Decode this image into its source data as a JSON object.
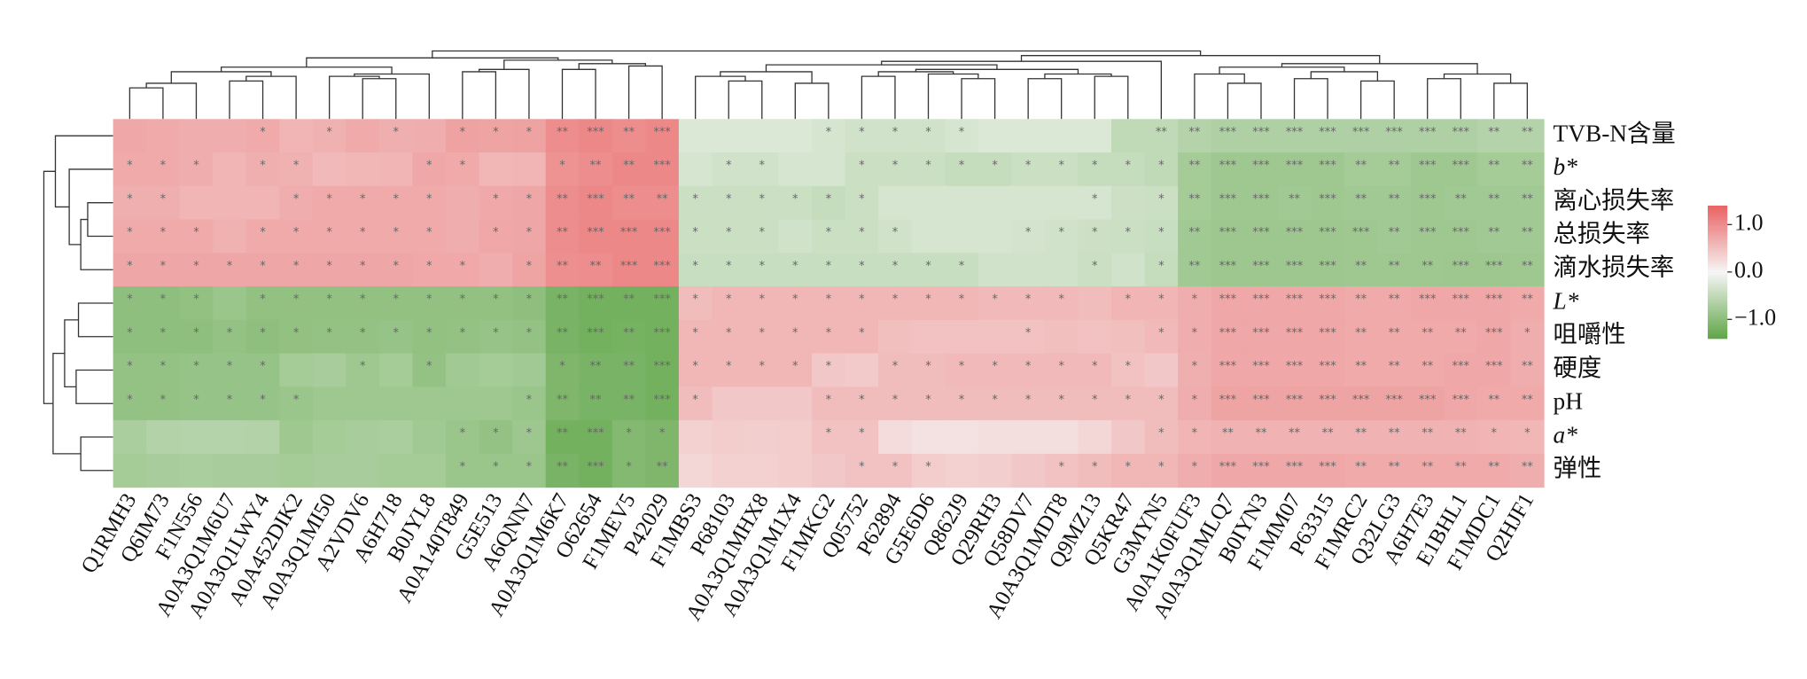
{
  "chart_data": {
    "type": "heatmap",
    "columns": [
      "Q1RMH3",
      "Q6IM73",
      "F1N556",
      "A0A3Q1M6U7",
      "A0A3Q1LWY4",
      "A0A452DIK2",
      "A0A3Q1MI50",
      "A2VDV6",
      "A6H718",
      "B0JYL8",
      "A0A140T849",
      "G5E513",
      "A6QNN7",
      "A0A3Q1M6K7",
      "O62654",
      "F1MEV5",
      "P42029",
      "F1MBS3",
      "P68103",
      "A0A3Q1MHX8",
      "A0A3Q1M1X4",
      "F1MKG2",
      "Q05752",
      "P62894",
      "G5E6D6",
      "Q862J9",
      "Q29RH3",
      "Q58DV7",
      "A0A3Q1MDT8",
      "Q9MZ13",
      "Q5KR47",
      "G3MYN5",
      "A0A1K0FUF3",
      "A0A3Q1MLQ7",
      "B0IYN3",
      "F1MM07",
      "P63315",
      "F1MRC2",
      "Q32LG3",
      "A6H7E3",
      "E1BHL1",
      "F1MDC1",
      "Q2HJF1"
    ],
    "rows": [
      "TVB-N含量",
      "b*",
      "离心损失率",
      "总损失率",
      "滴水损失率",
      "L*",
      "咀嚼性",
      "硬度",
      "pH",
      "a*",
      "弹性"
    ],
    "values": [
      [
        0.75,
        0.72,
        0.7,
        0.7,
        0.72,
        0.62,
        0.66,
        0.72,
        0.68,
        0.7,
        0.8,
        0.78,
        0.8,
        1.0,
        1.05,
        1.0,
        1.05,
        -0.25,
        -0.25,
        -0.25,
        -0.25,
        -0.3,
        -0.35,
        -0.35,
        -0.35,
        -0.3,
        -0.25,
        -0.25,
        -0.25,
        -0.25,
        -0.5,
        -0.5,
        -0.6,
        -0.65,
        -0.65,
        -0.65,
        -0.65,
        -0.65,
        -0.65,
        -0.65,
        -0.65,
        -0.6,
        -0.6
      ],
      [
        0.72,
        0.72,
        0.7,
        0.62,
        0.68,
        0.66,
        0.58,
        0.6,
        0.62,
        0.75,
        0.72,
        0.6,
        0.62,
        0.95,
        1.0,
        1.05,
        1.05,
        -0.3,
        -0.35,
        -0.35,
        -0.3,
        -0.3,
        -0.4,
        -0.4,
        -0.4,
        -0.45,
        -0.45,
        -0.4,
        -0.4,
        -0.45,
        -0.45,
        -0.5,
        -0.75,
        -0.8,
        -0.8,
        -0.8,
        -0.8,
        -0.75,
        -0.75,
        -0.8,
        -0.8,
        -0.75,
        -0.75
      ],
      [
        0.68,
        0.68,
        0.62,
        0.62,
        0.62,
        0.7,
        0.72,
        0.72,
        0.72,
        0.72,
        0.7,
        0.74,
        0.76,
        1.0,
        1.05,
        1.0,
        1.0,
        -0.4,
        -0.4,
        -0.4,
        -0.4,
        -0.45,
        -0.4,
        -0.3,
        -0.3,
        -0.3,
        -0.3,
        -0.3,
        -0.3,
        -0.3,
        -0.38,
        -0.4,
        -0.75,
        -0.8,
        -0.8,
        -0.78,
        -0.8,
        -0.78,
        -0.78,
        -0.8,
        -0.78,
        -0.78,
        -0.78
      ],
      [
        0.72,
        0.72,
        0.72,
        0.66,
        0.72,
        0.72,
        0.72,
        0.72,
        0.72,
        0.72,
        0.7,
        0.75,
        0.76,
        1.0,
        1.05,
        1.05,
        1.05,
        -0.4,
        -0.4,
        -0.4,
        -0.35,
        -0.4,
        -0.4,
        -0.35,
        -0.3,
        -0.3,
        -0.3,
        -0.32,
        -0.35,
        -0.38,
        -0.4,
        -0.42,
        -0.78,
        -0.82,
        -0.82,
        -0.82,
        -0.82,
        -0.8,
        -0.78,
        -0.8,
        -0.8,
        -0.78,
        -0.78
      ],
      [
        0.76,
        0.76,
        0.76,
        0.76,
        0.76,
        0.76,
        0.76,
        0.76,
        0.76,
        0.74,
        0.74,
        0.7,
        0.78,
        0.98,
        1.0,
        1.05,
        1.05,
        -0.42,
        -0.42,
        -0.42,
        -0.42,
        -0.42,
        -0.42,
        -0.42,
        -0.42,
        -0.42,
        -0.35,
        -0.35,
        -0.35,
        -0.4,
        -0.35,
        -0.45,
        -0.78,
        -0.82,
        -0.82,
        -0.82,
        -0.82,
        -0.8,
        -0.8,
        -0.8,
        -0.82,
        -0.82,
        -0.8
      ],
      [
        -0.95,
        -0.95,
        -0.92,
        -0.85,
        -0.92,
        -0.92,
        -0.92,
        -0.92,
        -0.92,
        -0.92,
        -0.92,
        -0.92,
        -0.95,
        -1.15,
        -1.2,
        -1.2,
        -1.2,
        0.55,
        0.6,
        0.6,
        0.6,
        0.6,
        0.6,
        0.6,
        0.6,
        0.6,
        0.58,
        0.58,
        0.58,
        0.55,
        0.62,
        0.62,
        0.7,
        0.75,
        0.75,
        0.75,
        0.75,
        0.72,
        0.72,
        0.75,
        0.75,
        0.75,
        0.72
      ],
      [
        -0.95,
        -0.95,
        -0.95,
        -0.9,
        -0.95,
        -0.92,
        -0.9,
        -0.9,
        -0.88,
        -0.92,
        -0.9,
        -0.88,
        -0.9,
        -1.15,
        -1.2,
        -1.18,
        -1.2,
        0.6,
        0.6,
        0.6,
        0.6,
        0.6,
        0.6,
        0.52,
        0.5,
        0.5,
        0.5,
        0.5,
        0.52,
        0.5,
        0.52,
        0.58,
        0.7,
        0.75,
        0.75,
        0.75,
        0.75,
        0.72,
        0.72,
        0.72,
        0.72,
        0.75,
        0.7
      ],
      [
        -0.9,
        -0.9,
        -0.88,
        -0.88,
        -0.88,
        -0.75,
        -0.72,
        -0.8,
        -0.75,
        -0.9,
        -0.78,
        -0.75,
        -0.78,
        -1.1,
        -1.15,
        -1.15,
        -1.2,
        0.6,
        0.6,
        0.6,
        0.6,
        0.45,
        0.42,
        0.55,
        0.55,
        0.58,
        0.58,
        0.58,
        0.58,
        0.58,
        0.5,
        0.45,
        0.68,
        0.75,
        0.75,
        0.75,
        0.75,
        0.72,
        0.72,
        0.72,
        0.75,
        0.75,
        0.7
      ],
      [
        -0.9,
        -0.9,
        -0.88,
        -0.88,
        -0.88,
        -0.85,
        -0.8,
        -0.8,
        -0.8,
        -0.8,
        -0.8,
        -0.8,
        -0.85,
        -1.1,
        -1.15,
        -1.15,
        -1.2,
        0.55,
        0.45,
        0.45,
        0.45,
        0.55,
        0.55,
        0.55,
        0.55,
        0.55,
        0.55,
        0.55,
        0.55,
        0.55,
        0.55,
        0.55,
        0.7,
        0.78,
        0.78,
        0.78,
        0.78,
        0.78,
        0.78,
        0.78,
        0.75,
        0.72,
        0.72
      ],
      [
        -0.7,
        -0.62,
        -0.6,
        -0.6,
        -0.62,
        -0.8,
        -0.75,
        -0.72,
        -0.7,
        -0.78,
        -0.85,
        -0.9,
        -0.82,
        -1.2,
        -1.2,
        -1.05,
        -1.1,
        0.35,
        0.4,
        0.38,
        0.4,
        0.5,
        0.5,
        0.25,
        0.2,
        0.2,
        0.22,
        0.22,
        0.22,
        0.3,
        0.45,
        0.55,
        0.62,
        0.65,
        0.65,
        0.65,
        0.65,
        0.65,
        0.65,
        0.65,
        0.65,
        0.62,
        0.6
      ],
      [
        -0.75,
        -0.72,
        -0.7,
        -0.72,
        -0.72,
        -0.75,
        -0.72,
        -0.72,
        -0.75,
        -0.75,
        -0.85,
        -0.85,
        -0.85,
        -1.15,
        -1.2,
        -1.05,
        -1.1,
        0.3,
        0.35,
        0.35,
        0.4,
        0.45,
        0.5,
        0.5,
        0.4,
        0.35,
        0.38,
        0.45,
        0.5,
        0.55,
        0.6,
        0.6,
        0.7,
        0.75,
        0.75,
        0.75,
        0.75,
        0.72,
        0.72,
        0.72,
        0.72,
        0.72,
        0.7
      ]
    ],
    "labels": [
      [
        null,
        null,
        null,
        null,
        "*",
        null,
        "*",
        null,
        "*",
        null,
        "*",
        "*",
        "*",
        "**",
        "***",
        "**",
        "***",
        null,
        null,
        null,
        null,
        "*",
        "*",
        "*",
        "*",
        "*",
        null,
        null,
        null,
        null,
        null,
        "**",
        "**",
        "***",
        "***",
        "***",
        "***",
        "***",
        "***",
        "***",
        "***",
        "**",
        "**"
      ],
      [
        "*",
        "*",
        "*",
        null,
        "*",
        "*",
        null,
        null,
        null,
        "*",
        "*",
        null,
        null,
        "*",
        "**",
        "**",
        "***",
        null,
        "*",
        "*",
        null,
        null,
        "*",
        "*",
        "*",
        "*",
        "*",
        "*",
        "*",
        "*",
        "*",
        "*",
        "**",
        "***",
        "***",
        "***",
        "***",
        "**",
        "**",
        "***",
        "***",
        "**",
        "**"
      ],
      [
        "*",
        "*",
        null,
        null,
        null,
        "*",
        "*",
        "*",
        "*",
        "*",
        null,
        "*",
        "*",
        "**",
        "***",
        "**",
        "**",
        "*",
        "*",
        "*",
        "*",
        "*",
        "*",
        null,
        null,
        null,
        null,
        null,
        null,
        "*",
        null,
        "*",
        "**",
        "***",
        "***",
        "**",
        "***",
        "**",
        "**",
        "***",
        "**",
        "**",
        "**"
      ],
      [
        "*",
        "*",
        "*",
        null,
        "*",
        "*",
        "*",
        "*",
        "*",
        "*",
        null,
        "*",
        "*",
        "**",
        "***",
        "***",
        "***",
        "*",
        "*",
        "*",
        null,
        "*",
        "*",
        "*",
        null,
        null,
        null,
        "*",
        "*",
        "*",
        "*",
        "*",
        "**",
        "***",
        "***",
        "***",
        "***",
        "***",
        "**",
        "***",
        "***",
        "**",
        "**"
      ],
      [
        "*",
        "*",
        "*",
        "*",
        "*",
        "*",
        "*",
        "*",
        "*",
        "*",
        "*",
        null,
        "*",
        "**",
        "**",
        "***",
        "***",
        "*",
        "*",
        "*",
        "*",
        "*",
        "*",
        "*",
        "*",
        "*",
        null,
        null,
        null,
        "*",
        null,
        "*",
        "**",
        "***",
        "***",
        "***",
        "***",
        "**",
        "**",
        "**",
        "***",
        "***",
        "**"
      ],
      [
        "*",
        "*",
        "*",
        null,
        "*",
        "*",
        "*",
        "*",
        "*",
        "*",
        "*",
        "*",
        "*",
        "**",
        "***",
        "**",
        "***",
        "*",
        "*",
        "*",
        "*",
        "*",
        "*",
        "*",
        "*",
        "*",
        "*",
        "*",
        "*",
        null,
        "*",
        "*",
        "*",
        "***",
        "***",
        "***",
        "***",
        "**",
        "**",
        "***",
        "***",
        "***",
        "**"
      ],
      [
        "*",
        "*",
        "*",
        "*",
        "*",
        "*",
        "*",
        "*",
        "*",
        "*",
        "*",
        "*",
        "*",
        "**",
        "***",
        "**",
        "***",
        "*",
        "*",
        "*",
        "*",
        "*",
        "*",
        null,
        null,
        null,
        null,
        "*",
        null,
        null,
        null,
        "*",
        "*",
        "***",
        "***",
        "***",
        "***",
        "**",
        "**",
        "**",
        "**",
        "***",
        "*"
      ],
      [
        "*",
        "*",
        "*",
        "*",
        "*",
        null,
        null,
        "*",
        null,
        "*",
        null,
        null,
        null,
        "*",
        "**",
        "**",
        "***",
        "*",
        "*",
        "*",
        "*",
        "*",
        null,
        "*",
        "*",
        "*",
        "*",
        "*",
        "*",
        "*",
        "*",
        null,
        "*",
        "***",
        "***",
        "***",
        "***",
        "**",
        "**",
        "**",
        "***",
        "***",
        "**"
      ],
      [
        "*",
        "*",
        "*",
        "*",
        "*",
        "*",
        null,
        null,
        null,
        null,
        null,
        null,
        "*",
        "**",
        "**",
        "**",
        "***",
        "*",
        null,
        null,
        null,
        "*",
        "*",
        "*",
        "*",
        "*",
        "*",
        "*",
        "*",
        "*",
        "*",
        "*",
        "*",
        "***",
        "***",
        "***",
        "***",
        "***",
        "***",
        "***",
        "***",
        "**",
        "**"
      ],
      [
        null,
        null,
        null,
        null,
        null,
        null,
        null,
        null,
        null,
        null,
        "*",
        "*",
        "*",
        "**",
        "***",
        "*",
        "*",
        null,
        null,
        null,
        null,
        "*",
        "*",
        null,
        null,
        null,
        null,
        null,
        null,
        null,
        null,
        "*",
        "*",
        "**",
        "**",
        "**",
        "**",
        "**",
        "**",
        "**",
        "**",
        "*",
        "*"
      ],
      [
        null,
        null,
        null,
        null,
        null,
        null,
        null,
        null,
        null,
        null,
        "*",
        "*",
        "*",
        "**",
        "***",
        "*",
        "**",
        null,
        null,
        null,
        null,
        null,
        "*",
        "*",
        "*",
        null,
        null,
        null,
        "*",
        "*",
        "*",
        "*",
        "*",
        "***",
        "***",
        "***",
        "***",
        "**",
        "**",
        "**",
        "**",
        "**",
        "**"
      ]
    ],
    "zlim": [
      -1.4,
      1.4
    ],
    "zticks": [
      {
        "value": 1,
        "label": "1.0"
      },
      {
        "value": 0,
        "label": "0.0"
      },
      {
        "value": -1,
        "label": "−1.0"
      }
    ],
    "colors": {
      "low": "#5ea545",
      "mid": "#f6f6f6",
      "high": "#ea6363"
    }
  }
}
